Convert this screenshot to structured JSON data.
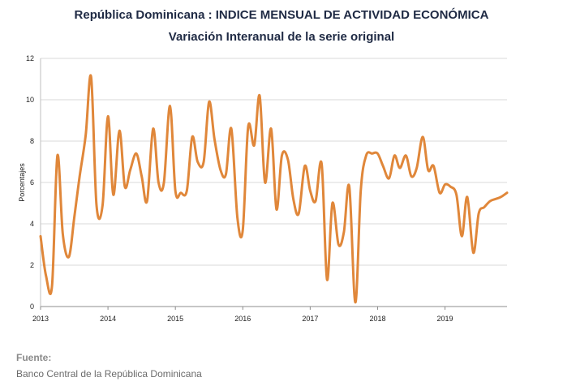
{
  "header": {
    "title": "República Dominicana : INDICE MENSUAL DE ACTIVIDAD ECONÓMICA",
    "subtitle": "Variación Interanual de la serie original"
  },
  "footer": {
    "source_label": "Fuente:",
    "source_text": "Banco Central de la República Dominicana"
  },
  "chart_data": {
    "type": "line",
    "ylabel": "Porcentajes",
    "xlabel": "",
    "ylim": [
      0,
      12
    ],
    "yticks": [
      0,
      2,
      4,
      6,
      8,
      10,
      12
    ],
    "xlim": [
      2013,
      2019.92
    ],
    "xticks": [
      "2013",
      "2014",
      "2015",
      "2016",
      "2017",
      "2018",
      "2019"
    ],
    "grid": true,
    "line_color": "#e0873a",
    "series": [
      {
        "name": "",
        "x": [
          2013.0,
          2013.08,
          2013.17,
          2013.25,
          2013.33,
          2013.42,
          2013.5,
          2013.58,
          2013.67,
          2013.75,
          2013.83,
          2013.92,
          2014.0,
          2014.08,
          2014.17,
          2014.25,
          2014.33,
          2014.42,
          2014.5,
          2014.58,
          2014.67,
          2014.75,
          2014.83,
          2014.92,
          2015.0,
          2015.08,
          2015.17,
          2015.25,
          2015.33,
          2015.42,
          2015.5,
          2015.58,
          2015.67,
          2015.75,
          2015.83,
          2015.92,
          2016.0,
          2016.08,
          2016.17,
          2016.25,
          2016.33,
          2016.42,
          2016.5,
          2016.58,
          2016.67,
          2016.75,
          2016.83,
          2016.92,
          2017.0,
          2017.08,
          2017.17,
          2017.25,
          2017.33,
          2017.42,
          2017.5,
          2017.58,
          2017.67,
          2017.75,
          2017.83,
          2017.92,
          2018.0,
          2018.08,
          2018.17,
          2018.25,
          2018.33,
          2018.42,
          2018.5,
          2018.58,
          2018.67,
          2018.75,
          2018.83,
          2018.92,
          2019.0,
          2019.08,
          2019.17,
          2019.25,
          2019.33,
          2019.42,
          2019.5,
          2019.58,
          2019.67,
          2019.75,
          2019.83,
          2019.92
        ],
        "values": [
          3.4,
          1.5,
          1.0,
          7.3,
          3.5,
          2.4,
          4.3,
          6.3,
          8.3,
          11.1,
          4.9,
          4.9,
          9.2,
          5.4,
          8.5,
          5.8,
          6.6,
          7.4,
          6.3,
          5.1,
          8.6,
          6.0,
          6.0,
          9.7,
          5.6,
          5.5,
          5.6,
          8.2,
          7.0,
          7.0,
          9.9,
          8.1,
          6.6,
          6.4,
          8.6,
          4.3,
          3.7,
          8.7,
          7.8,
          10.2,
          6.0,
          8.6,
          4.7,
          7.3,
          7.1,
          5.2,
          4.5,
          6.8,
          5.6,
          5.1,
          6.9,
          1.3,
          5.0,
          3.0,
          3.6,
          5.8,
          0.2,
          5.6,
          7.3,
          7.4,
          7.4,
          6.8,
          6.2,
          7.3,
          6.7,
          7.3,
          6.3,
          6.7,
          8.2,
          6.6,
          6.8,
          5.5,
          5.9,
          5.8,
          5.4,
          3.4,
          5.3,
          2.6,
          4.5,
          4.8,
          5.1,
          5.2,
          5.3,
          5.5
        ]
      }
    ]
  }
}
